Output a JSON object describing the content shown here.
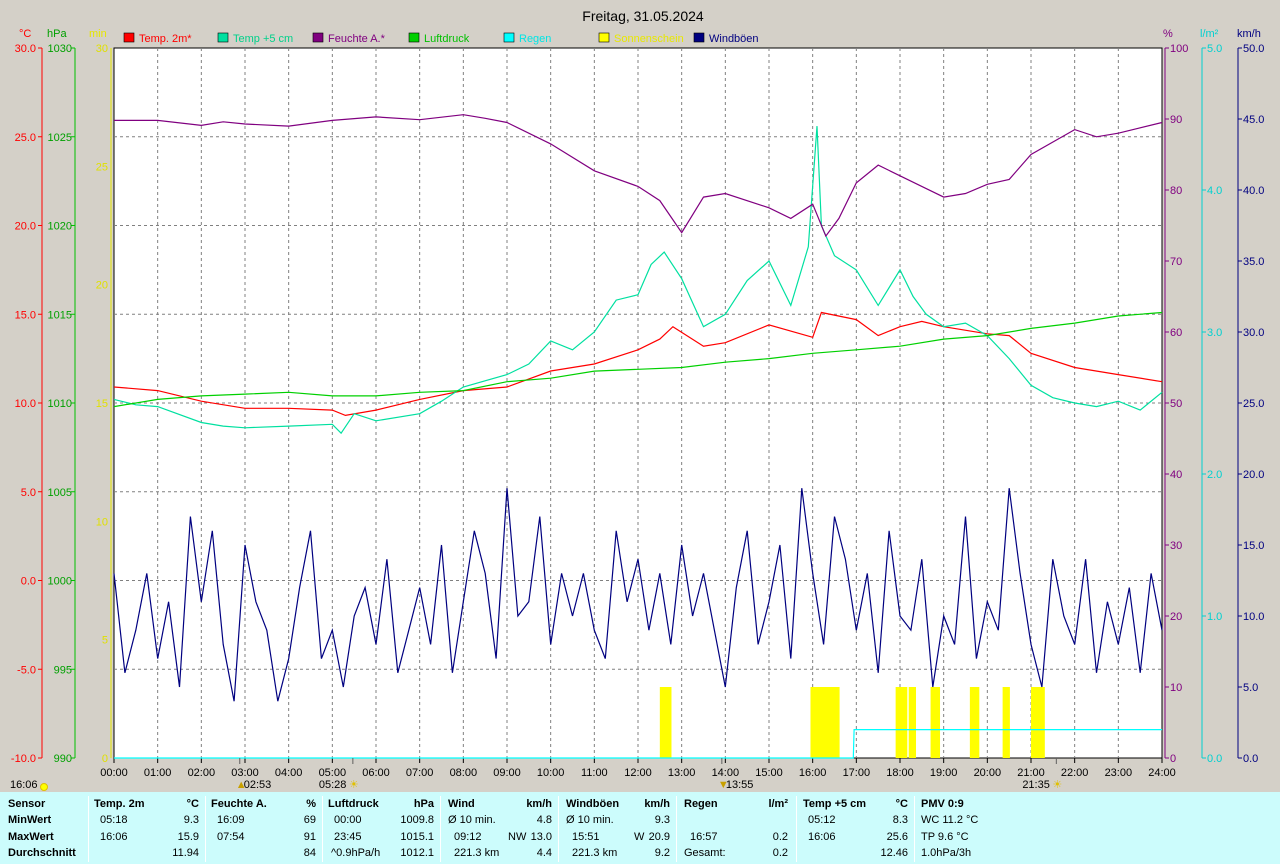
{
  "title": "Freitag, 31.05.2024",
  "legend": [
    {
      "label": "Temp. 2m*",
      "color": "#ff0000",
      "text_color": "#ff0000"
    },
    {
      "label": "Temp +5 cm",
      "color": "#00e0a0",
      "text_color": "#00d08a"
    },
    {
      "label": "Feuchte A.*",
      "color": "#800080",
      "text_color": "#800080"
    },
    {
      "label": "Luftdruck",
      "color": "#00d000",
      "text_color": "#00c000"
    },
    {
      "label": "Regen",
      "color": "#00ffff",
      "text_color": "#00e5e5"
    },
    {
      "label": "Sonnenschein",
      "color": "#ffff00",
      "text_color": "#e8e800"
    },
    {
      "label": "Windböen",
      "color": "#000080",
      "text_color": "#000080"
    }
  ],
  "axis_units": {
    "temp": "°C",
    "pressure": "hPa",
    "sun": "min",
    "humidity": "%",
    "rain": "l/m²",
    "wind": "km/h"
  },
  "chart_data": {
    "type": "line",
    "x_range": [
      "00:00",
      "24:00"
    ],
    "x_ticks": [
      "00:00",
      "01:00",
      "02:00",
      "03:00",
      "04:00",
      "05:00",
      "06:00",
      "07:00",
      "08:00",
      "09:00",
      "10:00",
      "11:00",
      "12:00",
      "13:00",
      "14:00",
      "15:00",
      "16:00",
      "17:00",
      "18:00",
      "19:00",
      "20:00",
      "21:00",
      "22:00",
      "23:00",
      "24:00"
    ],
    "axes": {
      "temp": {
        "range": [
          -10,
          30
        ],
        "ticks": [
          "30.0",
          "25.0",
          "20.0",
          "15.0",
          "10.0",
          "5.0",
          "0.0",
          "-5.0",
          "-10.0"
        ]
      },
      "pressure": {
        "range": [
          990,
          1030
        ],
        "ticks": [
          "1030",
          "1025",
          "1020",
          "1015",
          "1010",
          "1005",
          "1000",
          "995",
          "990"
        ]
      },
      "sun": {
        "range": [
          0,
          30
        ],
        "ticks": [
          "30",
          "25",
          "20",
          "15",
          "10",
          "5",
          "0"
        ]
      },
      "humidity": {
        "range": [
          0,
          100
        ],
        "ticks": [
          "100",
          "90",
          "80",
          "70",
          "60",
          "50",
          "40",
          "30",
          "20",
          "10",
          "0"
        ]
      },
      "rain": {
        "range": [
          0.0,
          5.0
        ],
        "ticks": [
          "5.0",
          "4.0",
          "3.0",
          "2.0",
          "1.0",
          "0.0"
        ]
      },
      "wind": {
        "range": [
          0.0,
          50.0
        ],
        "ticks": [
          "50.0",
          "45.0",
          "40.0",
          "35.0",
          "30.0",
          "25.0",
          "20.0",
          "15.0",
          "10.0",
          "5.0",
          "0.0"
        ]
      }
    },
    "series": [
      {
        "name": "Temp. 2m*",
        "axis": "temp",
        "x": [
          0,
          1,
          2,
          3,
          4,
          5,
          5.3,
          6,
          7,
          8,
          9,
          10,
          11,
          12,
          12.5,
          12.8,
          13.5,
          14,
          15,
          16,
          16.2,
          17,
          17.5,
          18,
          18.5,
          19,
          20,
          20.5,
          21,
          22,
          23,
          24
        ],
        "y": [
          10.9,
          10.7,
          10.1,
          9.7,
          9.7,
          9.6,
          9.3,
          9.6,
          10.2,
          10.7,
          10.9,
          11.8,
          12.2,
          13.0,
          13.6,
          14.3,
          13.2,
          13.4,
          14.4,
          13.7,
          15.1,
          14.7,
          13.8,
          14.3,
          14.6,
          14.3,
          13.9,
          13.8,
          12.8,
          12.0,
          11.6,
          11.2
        ]
      },
      {
        "name": "Temp +5 cm",
        "axis": "temp",
        "x": [
          0,
          0.5,
          1,
          2,
          2.5,
          3,
          4,
          5,
          5.2,
          5.5,
          6,
          7,
          7.5,
          8,
          9,
          9.5,
          10,
          10.5,
          11,
          11.5,
          12,
          12.3,
          12.6,
          13,
          13.5,
          14,
          14.5,
          15,
          15.5,
          15.9,
          16.1,
          16.2,
          16.5,
          17,
          17.5,
          18,
          18.3,
          18.6,
          19,
          19.5,
          20,
          20.5,
          21,
          21.5,
          22,
          22.5,
          23,
          23.5,
          24
        ],
        "y": [
          10.2,
          9.9,
          9.8,
          8.9,
          8.7,
          8.6,
          8.7,
          8.8,
          8.3,
          9.4,
          9.0,
          9.4,
          10.1,
          10.9,
          11.6,
          12.2,
          13.5,
          13.0,
          14.0,
          15.8,
          16.1,
          17.8,
          18.5,
          17.0,
          14.3,
          15.0,
          16.9,
          18.0,
          15.5,
          18.8,
          25.6,
          20.0,
          18.3,
          17.5,
          15.5,
          17.5,
          16.0,
          15.0,
          14.3,
          14.5,
          13.8,
          12.5,
          11.0,
          10.3,
          10.0,
          9.8,
          10.1,
          9.6,
          10.6
        ]
      },
      {
        "name": "Feuchte A.*",
        "axis": "humidity",
        "x": [
          0,
          1,
          2,
          2.5,
          3,
          4,
          5,
          6,
          7,
          8,
          8.5,
          9,
          10,
          11,
          12,
          12.5,
          13,
          13.5,
          14,
          15,
          15.5,
          16,
          16.3,
          16.6,
          17,
          17.5,
          18,
          18.5,
          19,
          19.5,
          20,
          20.5,
          21,
          22,
          22.5,
          23,
          24
        ],
        "y": [
          89.8,
          89.8,
          89.1,
          89.6,
          89.3,
          89.0,
          89.8,
          90.3,
          89.9,
          90.6,
          90.1,
          89.5,
          86.5,
          82.7,
          80.5,
          78.5,
          74.0,
          79.0,
          79.5,
          77.5,
          76.0,
          78.0,
          73.5,
          76.0,
          81.0,
          83.5,
          82.0,
          80.5,
          79.0,
          79.5,
          80.8,
          81.5,
          85.0,
          88.5,
          87.5,
          88.0,
          89.5
        ]
      },
      {
        "name": "Luftdruck",
        "axis": "pressure",
        "x": [
          0,
          1,
          2,
          3,
          4,
          5,
          6,
          7,
          8,
          9,
          10,
          11,
          12,
          13,
          14,
          15,
          16,
          17,
          18,
          19,
          20,
          21,
          22,
          23,
          24
        ],
        "y": [
          1009.8,
          1010.2,
          1010.4,
          1010.5,
          1010.6,
          1010.4,
          1010.4,
          1010.6,
          1010.7,
          1011.2,
          1011.4,
          1011.8,
          1011.9,
          1012.0,
          1012.3,
          1012.5,
          1012.8,
          1013.0,
          1013.2,
          1013.6,
          1013.8,
          1014.2,
          1014.5,
          1014.9,
          1015.1
        ]
      },
      {
        "name": "Regen",
        "axis": "rain",
        "x": [
          0,
          16.93,
          16.95,
          24
        ],
        "y": [
          0,
          0,
          0.2,
          0.2
        ]
      },
      {
        "name": "Windböen",
        "axis": "wind",
        "x": [
          0,
          0.25,
          0.5,
          0.75,
          1,
          1.25,
          1.5,
          1.75,
          2,
          2.25,
          2.5,
          2.75,
          3,
          3.25,
          3.5,
          3.75,
          4,
          4.25,
          4.5,
          4.75,
          5,
          5.25,
          5.5,
          5.75,
          6,
          6.25,
          6.5,
          6.75,
          7,
          7.25,
          7.5,
          7.75,
          8,
          8.25,
          8.5,
          8.75,
          9,
          9.25,
          9.5,
          9.75,
          10,
          10.25,
          10.5,
          10.75,
          11,
          11.25,
          11.5,
          11.75,
          12,
          12.25,
          12.5,
          12.75,
          13,
          13.25,
          13.5,
          13.75,
          14,
          14.25,
          14.5,
          14.75,
          15,
          15.25,
          15.5,
          15.75,
          16,
          16.25,
          16.5,
          16.75,
          17,
          17.25,
          17.5,
          17.75,
          18,
          18.25,
          18.5,
          18.75,
          19,
          19.25,
          19.5,
          19.75,
          20,
          20.25,
          20.5,
          20.75,
          21,
          21.25,
          21.5,
          21.75,
          22,
          22.25,
          22.5,
          22.75,
          23,
          23.25,
          23.5,
          23.75,
          24
        ],
        "y": [
          13,
          6,
          9,
          13,
          7,
          11,
          5,
          17,
          11,
          16,
          8,
          4,
          15,
          11,
          9,
          4,
          7,
          12,
          16,
          7,
          9,
          5,
          10,
          12,
          8,
          14,
          6,
          9,
          12,
          8,
          15,
          6,
          11,
          16,
          13,
          7,
          19,
          10,
          11,
          17,
          8,
          13,
          10,
          13,
          9,
          7,
          16,
          11,
          14,
          9,
          13,
          8,
          15,
          10,
          13,
          9,
          5,
          12,
          16,
          8,
          11,
          15,
          7,
          19,
          13,
          8,
          17,
          14,
          9,
          13,
          6,
          16,
          10,
          9,
          14,
          5,
          10,
          8,
          17,
          7,
          11,
          9,
          19,
          13,
          8,
          5,
          14,
          10,
          8,
          14,
          6,
          11,
          8,
          12,
          6,
          13,
          9
        ]
      }
    ],
    "sunshine": {
      "axis": "sun",
      "x": [
        12.5,
        12.6,
        15.95,
        16.05,
        16.15,
        16.25,
        16.35,
        16.45,
        17.9,
        18.0,
        18.2,
        18.7,
        18.75,
        19.6,
        19.65,
        20.35,
        21.0,
        21.05,
        21.1,
        21.15
      ],
      "y": [
        3,
        3,
        3,
        3,
        3,
        3,
        3,
        3,
        3,
        3,
        3,
        3,
        3,
        3,
        3,
        3,
        3,
        3,
        3,
        3
      ]
    },
    "markers": [
      {
        "label": "02:53",
        "x": 2.88,
        "symbol": "▲",
        "row": 1
      },
      {
        "label": "05:28",
        "x": 5.47,
        "symbol": "☀",
        "row": 2
      },
      {
        "label": "13:55",
        "x": 13.92,
        "symbol": "▼",
        "row": 1
      },
      {
        "label": "21:35",
        "x": 21.58,
        "symbol": "☀",
        "row": 2
      },
      {
        "label": "16:06",
        "x": -0.85,
        "symbol": "",
        "row": 2
      }
    ]
  },
  "stats": {
    "sensor": {
      "header": "Sensor",
      "rows": [
        "MinWert",
        "MaxWert",
        "Durchschnitt"
      ]
    },
    "temp2m": {
      "header": "Temp. 2m",
      "unit": "°C",
      "min_time": "05:18",
      "min_val": "9.3",
      "max_time": "16:06",
      "max_val": "15.9",
      "avg_val": "11.94"
    },
    "humidity": {
      "header": "Feuchte A.",
      "unit": "%",
      "min_time": "16:09",
      "min_val": "69",
      "max_time": "07:54",
      "max_val": "91",
      "avg_val": "84"
    },
    "pressure": {
      "header": "Luftdruck",
      "unit": "hPa",
      "min_time": "00:00",
      "min_val": "1009.8",
      "max_time": "23:45",
      "max_val": "1015.1",
      "avg_time": "^0.9hPa/h",
      "avg_val": "1012.1"
    },
    "wind": {
      "header": "Wind",
      "unit": "km/h",
      "min_time": "Ø 10 min.",
      "min_val": "4.8",
      "max_time": "09:12",
      "max_mid": "NW",
      "max_val": "13.0",
      "avg_time": "221.3 km",
      "avg_val": "4.4"
    },
    "gusts": {
      "header": "Windböen",
      "unit": "km/h",
      "min_time": "Ø 10 min.",
      "min_val": "9.3",
      "max_time": "15:51",
      "max_mid": "W",
      "max_val": "20.9",
      "avg_time": "221.3 km",
      "avg_val": "9.2"
    },
    "rain": {
      "header": "Regen",
      "unit": "l/m²",
      "max_time": "16:57",
      "max_val": "0.2",
      "avg_time": "Gesamt:",
      "avg_val": "0.2"
    },
    "temp5cm": {
      "header": "Temp +5 cm",
      "unit": "°C",
      "min_time": "05:12",
      "min_val": "8.3",
      "max_time": "16:06",
      "max_val": "25.6",
      "avg_val": "12.46"
    },
    "pmv": {
      "header": "PMV 0:9",
      "row1": "WC 11.2 °C",
      "row2": "TP 9.6 °C",
      "row3": "1.0hPa/3h"
    }
  }
}
